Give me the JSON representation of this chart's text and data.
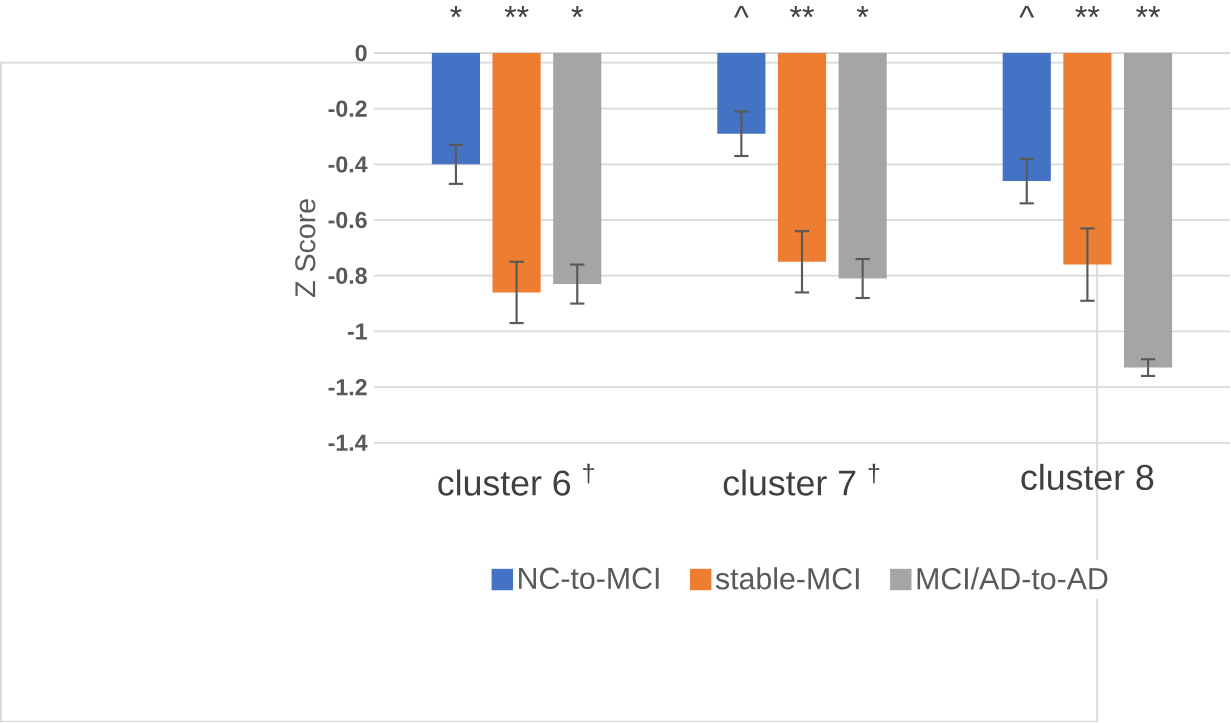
{
  "chart_data": {
    "type": "bar",
    "ylabel": "Z Score",
    "categories": [
      "cluster 6 $^{†}$",
      "cluster 7 $^{†}$",
      "cluster 8"
    ],
    "series": [
      {
        "name": "NC-to-MCI",
        "color": "#4472c4",
        "values": [
          -0.4,
          -0.29,
          -0.46
        ],
        "errors": [
          0.07,
          0.08,
          0.08
        ]
      },
      {
        "name": "stable-MCI",
        "color": "#ed7d31",
        "values": [
          -0.86,
          -0.75,
          -0.76
        ],
        "errors": [
          0.11,
          0.11,
          0.13
        ]
      },
      {
        "name": "MCI/AD-to-AD",
        "color": "#a5a5a5",
        "values": [
          -0.83,
          -0.81,
          -1.13
        ],
        "errors": [
          0.07,
          0.07,
          0.03
        ]
      }
    ],
    "ylim": [
      -1.4,
      0
    ],
    "yticks": [
      0,
      -0.2,
      -0.4,
      -0.6,
      -0.8,
      -1,
      -1.2,
      -1.4
    ],
    "grid": "y",
    "legend": "bottom",
    "annotations": [
      "*",
      "**",
      "*",
      "^",
      "**",
      "*",
      "^",
      "**",
      "**"
    ]
  }
}
